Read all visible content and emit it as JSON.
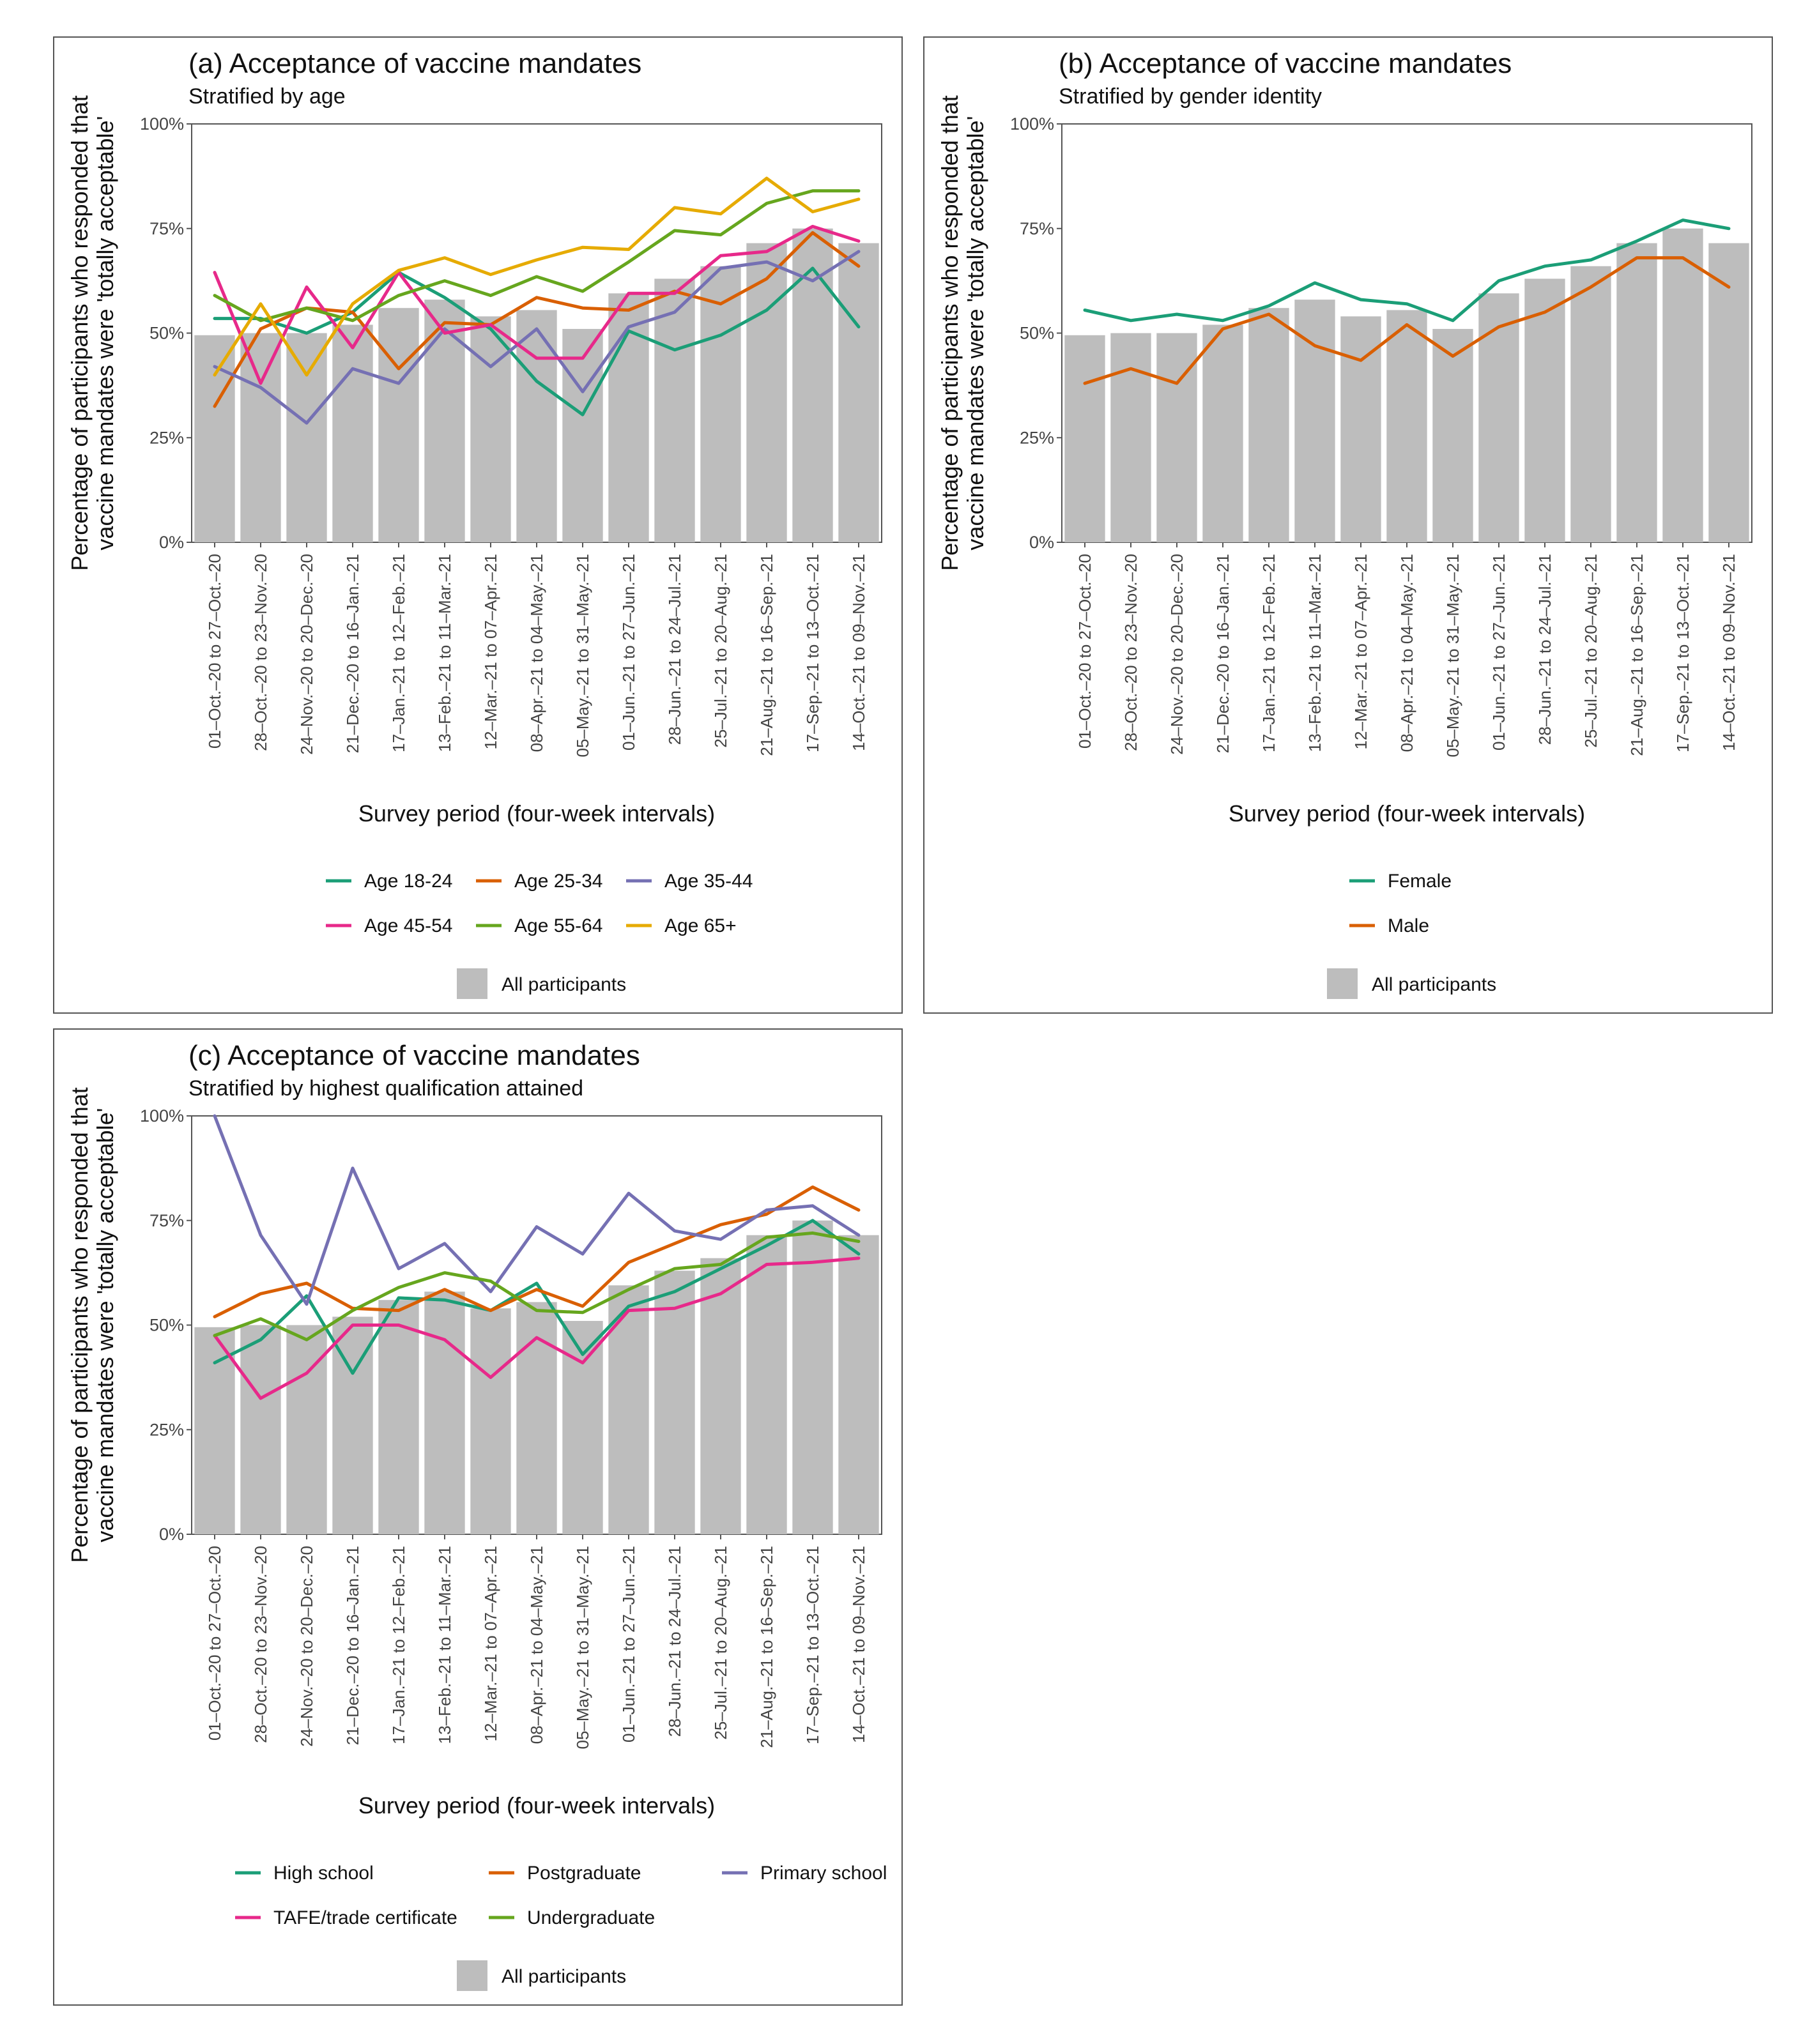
{
  "periods": [
    "01–Oct.–20 to 27–Oct.–20",
    "28–Oct.–20 to 23–Nov.–20",
    "24–Nov.–20 to 20–Dec.–20",
    "21–Dec.–20 to 16–Jan.–21",
    "17–Jan.–21 to 12–Feb.–21",
    "13–Feb.–21 to 11–Mar.–21",
    "12–Mar.–21 to 07–Apr.–21",
    "08–Apr.–21 to 04–May.–21",
    "05–May.–21 to 31–May.–21",
    "01–Jun.–21 to 27–Jun.–21",
    "28–Jun.–21 to 24–Jul.–21",
    "25–Jul.–21 to 20–Aug.–21",
    "21–Aug.–21 to 16–Sep.–21",
    "17–Sep.–21 to 13–Oct.–21",
    "14–Oct.–21 to 09–Nov.–21"
  ],
  "chart_data": [
    {
      "id": "a",
      "type": "bar+line",
      "title": "(a) Acceptance of vaccine mandates",
      "subtitle": "Stratified by age",
      "xlabel": "Survey period (four-week intervals)",
      "ylabel": [
        "Percentage of participants who responded that",
        "vaccine mandates were 'totally acceptable'"
      ],
      "ylim": [
        0,
        100
      ],
      "yticks": [
        "0%",
        "25%",
        "50%",
        "75%",
        "100%"
      ],
      "bar_label": "All participants",
      "bar_color": "#bdbdbd",
      "bars": [
        49.5,
        50,
        50,
        52,
        56,
        58,
        54,
        55.5,
        51,
        59.5,
        63,
        66,
        71.5,
        75,
        71.5
      ],
      "legend_cols": 3,
      "series": [
        {
          "name": "Age 18-24",
          "color": "#1b9e77",
          "values": [
            53.5,
            53.5,
            50,
            55,
            64.5,
            58.5,
            51,
            38.5,
            30.5,
            50.5,
            46,
            49.5,
            55.5,
            65.5,
            51.5
          ]
        },
        {
          "name": "Age 25-34",
          "color": "#d95f02",
          "values": [
            32.5,
            51,
            56,
            55,
            41.5,
            52.5,
            52,
            58.5,
            56,
            55.5,
            60,
            57,
            63,
            74,
            66
          ]
        },
        {
          "name": "Age 35-44",
          "color": "#7570b3",
          "values": [
            42,
            37,
            28.5,
            41.5,
            38,
            51,
            42,
            51,
            36,
            51.5,
            55,
            65.5,
            67,
            62.5,
            69.5
          ]
        },
        {
          "name": "Age 45-54",
          "color": "#e7298a",
          "values": [
            64.5,
            38,
            61,
            46.5,
            64.5,
            50,
            52,
            44,
            44,
            59.5,
            59.5,
            68.5,
            69.5,
            75.5,
            72
          ]
        },
        {
          "name": "Age 55-64",
          "color": "#66a61e",
          "values": [
            59,
            53,
            56,
            53,
            59,
            62.5,
            59,
            63.5,
            60,
            67,
            74.5,
            73.5,
            81,
            84,
            84
          ]
        },
        {
          "name": "Age 65+",
          "color": "#e6ab02",
          "values": [
            40,
            57,
            40,
            57,
            65,
            68,
            64,
            67.5,
            70.5,
            70,
            80,
            78.5,
            87,
            79,
            82
          ]
        }
      ]
    },
    {
      "id": "b",
      "type": "bar+line",
      "title": "(b) Acceptance of vaccine mandates",
      "subtitle": "Stratified by gender identity",
      "xlabel": "Survey period (four-week intervals)",
      "ylabel": [
        "Percentage of participants who responded that",
        "vaccine mandates were 'totally acceptable'"
      ],
      "ylim": [
        0,
        100
      ],
      "yticks": [
        "0%",
        "25%",
        "50%",
        "75%",
        "100%"
      ],
      "bar_label": "All participants",
      "bar_color": "#bdbdbd",
      "bars": [
        49.5,
        50,
        50,
        52,
        56,
        58,
        54,
        55.5,
        51,
        59.5,
        63,
        66,
        71.5,
        75,
        71.5
      ],
      "legend_cols": 1,
      "series": [
        {
          "name": "Female",
          "color": "#1b9e77",
          "values": [
            55.5,
            53,
            54.5,
            53,
            56.5,
            62,
            58,
            57,
            53,
            62.5,
            66,
            67.5,
            72,
            77,
            75
          ]
        },
        {
          "name": "Male",
          "color": "#d95f02",
          "values": [
            38,
            41.5,
            38,
            51,
            54.5,
            47,
            43.5,
            52,
            44.5,
            51.5,
            55,
            61,
            68,
            68,
            61
          ]
        }
      ]
    },
    {
      "id": "c",
      "type": "bar+line",
      "title": "(c) Acceptance of vaccine mandates",
      "subtitle": "Stratified by highest qualification attained",
      "xlabel": "Survey period (four-week intervals)",
      "ylabel": [
        "Percentage of participants who responded that",
        "vaccine mandates were 'totally acceptable'"
      ],
      "ylim": [
        0,
        100
      ],
      "yticks": [
        "0%",
        "25%",
        "50%",
        "75%",
        "100%"
      ],
      "bar_label": "All participants",
      "bar_color": "#bdbdbd",
      "bars": [
        49.5,
        50,
        50,
        52,
        56,
        58,
        54,
        55.5,
        51,
        59.5,
        63,
        66,
        71.5,
        75,
        71.5
      ],
      "legend_cols": 3,
      "series": [
        {
          "name": "High school",
          "color": "#1b9e77",
          "values": [
            41,
            46.5,
            57,
            38.5,
            56.5,
            56,
            53.5,
            60,
            43,
            54.5,
            58,
            63.5,
            69,
            75,
            67
          ]
        },
        {
          "name": "Postgraduate",
          "color": "#d95f02",
          "values": [
            52,
            57.5,
            60,
            54,
            53.5,
            58.5,
            53.5,
            58.5,
            54.5,
            65,
            69.5,
            74,
            76.5,
            83,
            77.5
          ]
        },
        {
          "name": "Primary school",
          "color": "#7570b3",
          "values": [
            100,
            71.5,
            55,
            87.5,
            63.5,
            69.5,
            58,
            73.5,
            67,
            81.5,
            72.5,
            70.5,
            77.5,
            78.5,
            71.5
          ]
        },
        {
          "name": "TAFE/trade certificate",
          "color": "#e7298a",
          "values": [
            47.5,
            32.5,
            38.5,
            50,
            50,
            46.5,
            37.5,
            47,
            41,
            53.5,
            54,
            57.5,
            64.5,
            65,
            66
          ]
        },
        {
          "name": "Undergraduate",
          "color": "#66a61e",
          "values": [
            47.5,
            51.5,
            46.5,
            53.5,
            59,
            62.5,
            60.5,
            53.5,
            53,
            58.5,
            63.5,
            64.5,
            71,
            72,
            70
          ]
        }
      ]
    }
  ]
}
